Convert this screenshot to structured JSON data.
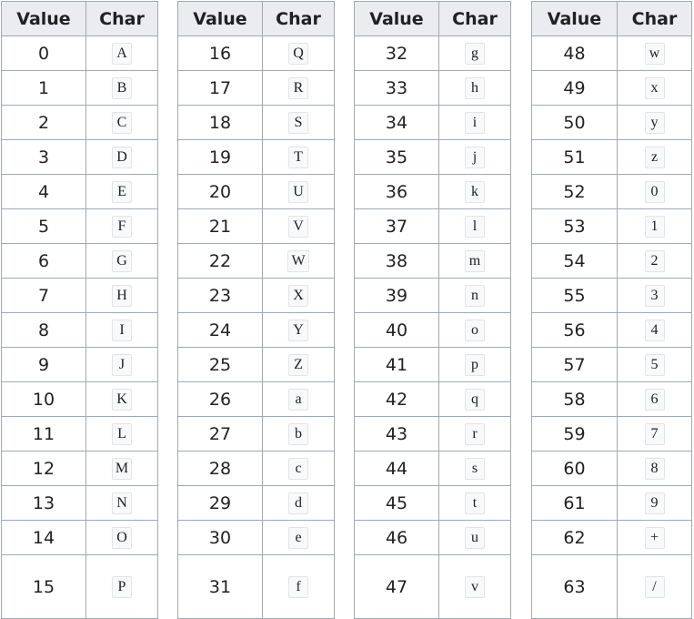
{
  "headers": {
    "value": "Value",
    "char": "Char"
  },
  "groups": [
    {
      "rows": [
        {
          "value": "0",
          "char": "A"
        },
        {
          "value": "1",
          "char": "B"
        },
        {
          "value": "2",
          "char": "C"
        },
        {
          "value": "3",
          "char": "D"
        },
        {
          "value": "4",
          "char": "E"
        },
        {
          "value": "5",
          "char": "F"
        },
        {
          "value": "6",
          "char": "G"
        },
        {
          "value": "7",
          "char": "H"
        },
        {
          "value": "8",
          "char": "I"
        },
        {
          "value": "9",
          "char": "J"
        },
        {
          "value": "10",
          "char": "K"
        },
        {
          "value": "11",
          "char": "L"
        },
        {
          "value": "12",
          "char": "M"
        },
        {
          "value": "13",
          "char": "N"
        },
        {
          "value": "14",
          "char": "O"
        },
        {
          "value": "15",
          "char": "P"
        }
      ]
    },
    {
      "rows": [
        {
          "value": "16",
          "char": "Q"
        },
        {
          "value": "17",
          "char": "R"
        },
        {
          "value": "18",
          "char": "S"
        },
        {
          "value": "19",
          "char": "T"
        },
        {
          "value": "20",
          "char": "U"
        },
        {
          "value": "21",
          "char": "V"
        },
        {
          "value": "22",
          "char": "W"
        },
        {
          "value": "23",
          "char": "X"
        },
        {
          "value": "24",
          "char": "Y"
        },
        {
          "value": "25",
          "char": "Z"
        },
        {
          "value": "26",
          "char": "a"
        },
        {
          "value": "27",
          "char": "b"
        },
        {
          "value": "28",
          "char": "c"
        },
        {
          "value": "29",
          "char": "d"
        },
        {
          "value": "30",
          "char": "e"
        },
        {
          "value": "31",
          "char": "f"
        }
      ]
    },
    {
      "rows": [
        {
          "value": "32",
          "char": "g"
        },
        {
          "value": "33",
          "char": "h"
        },
        {
          "value": "34",
          "char": "i"
        },
        {
          "value": "35",
          "char": "j"
        },
        {
          "value": "36",
          "char": "k"
        },
        {
          "value": "37",
          "char": "l"
        },
        {
          "value": "38",
          "char": "m"
        },
        {
          "value": "39",
          "char": "n"
        },
        {
          "value": "40",
          "char": "o"
        },
        {
          "value": "41",
          "char": "p"
        },
        {
          "value": "42",
          "char": "q"
        },
        {
          "value": "43",
          "char": "r"
        },
        {
          "value": "44",
          "char": "s"
        },
        {
          "value": "45",
          "char": "t"
        },
        {
          "value": "46",
          "char": "u"
        },
        {
          "value": "47",
          "char": "v"
        }
      ]
    },
    {
      "rows": [
        {
          "value": "48",
          "char": "w"
        },
        {
          "value": "49",
          "char": "x"
        },
        {
          "value": "50",
          "char": "y"
        },
        {
          "value": "51",
          "char": "z"
        },
        {
          "value": "52",
          "char": "0"
        },
        {
          "value": "53",
          "char": "1"
        },
        {
          "value": "54",
          "char": "2"
        },
        {
          "value": "55",
          "char": "3"
        },
        {
          "value": "56",
          "char": "4"
        },
        {
          "value": "57",
          "char": "5"
        },
        {
          "value": "58",
          "char": "6"
        },
        {
          "value": "59",
          "char": "7"
        },
        {
          "value": "60",
          "char": "8"
        },
        {
          "value": "61",
          "char": "9"
        },
        {
          "value": "62",
          "char": "+"
        },
        {
          "value": "63",
          "char": "/"
        }
      ]
    }
  ]
}
